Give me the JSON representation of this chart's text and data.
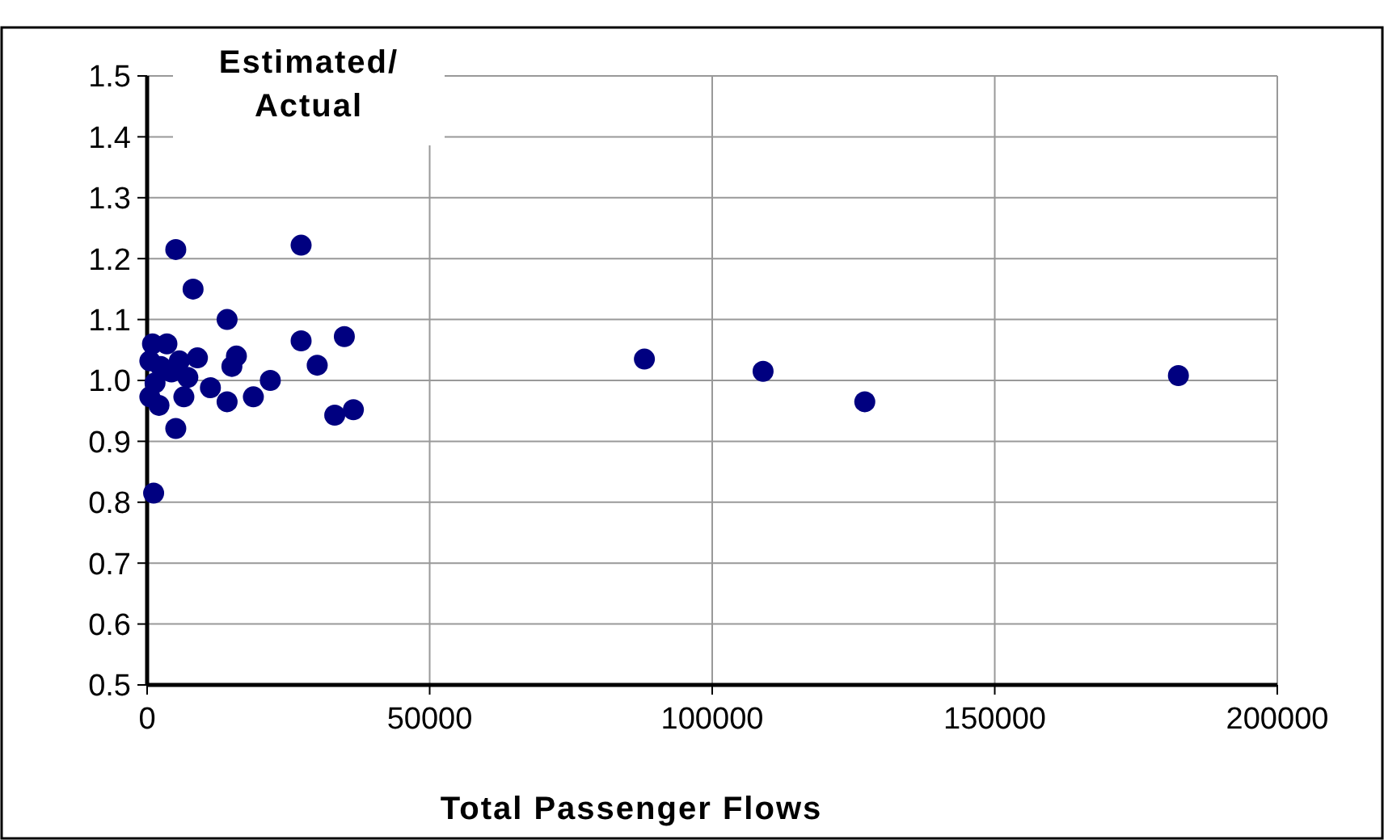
{
  "chart_data": {
    "type": "scatter",
    "ylabel": "Estimated/ Actual",
    "xlabel": "Total Passenger Flows",
    "x": [
      5070,
      27250,
      8130,
      14150,
      27250,
      34900,
      30100,
      8900,
      15800,
      15000,
      21800,
      11200,
      14150,
      18800,
      33200,
      36500,
      5070,
      1150,
      480,
      2100,
      6500,
      950,
      3500,
      480,
      2400,
      4300,
      7200,
      1400,
      5700,
      88000,
      109000,
      127000,
      182500
    ],
    "values": [
      1.215,
      1.222,
      1.15,
      1.1,
      1.065,
      1.072,
      1.025,
      1.037,
      1.04,
      1.023,
      1.0,
      0.988,
      0.965,
      0.973,
      0.943,
      0.952,
      0.921,
      0.815,
      0.973,
      0.959,
      0.973,
      1.06,
      1.06,
      1.032,
      1.023,
      1.014,
      1.005,
      0.996,
      1.032,
      1.035,
      1.015,
      0.965,
      1.008
    ],
    "color": "#000080",
    "marker": "circle",
    "xlim": [
      0,
      200000
    ],
    "xticks": [
      0,
      50000,
      100000,
      150000,
      200000
    ],
    "ylim": [
      0.5,
      1.5
    ],
    "yticks": [
      {
        "value": 0.5,
        "label": "0.5"
      },
      {
        "value": 0.6,
        "label": "0.6"
      },
      {
        "value": 0.7,
        "label": "0.7"
      },
      {
        "value": 0.8,
        "label": "0.8"
      },
      {
        "value": 0.9,
        "label": "0.9"
      },
      {
        "value": 1.0,
        "label": "1.0"
      },
      {
        "value": 1.1,
        "label": "1.1"
      },
      {
        "value": 1.2,
        "label": "1.2"
      },
      {
        "value": 1.3,
        "label": "1.3"
      },
      {
        "value": 1.4,
        "label": "1.4"
      },
      {
        "value": 1.5,
        "label": "1.5"
      }
    ],
    "grid": true
  }
}
